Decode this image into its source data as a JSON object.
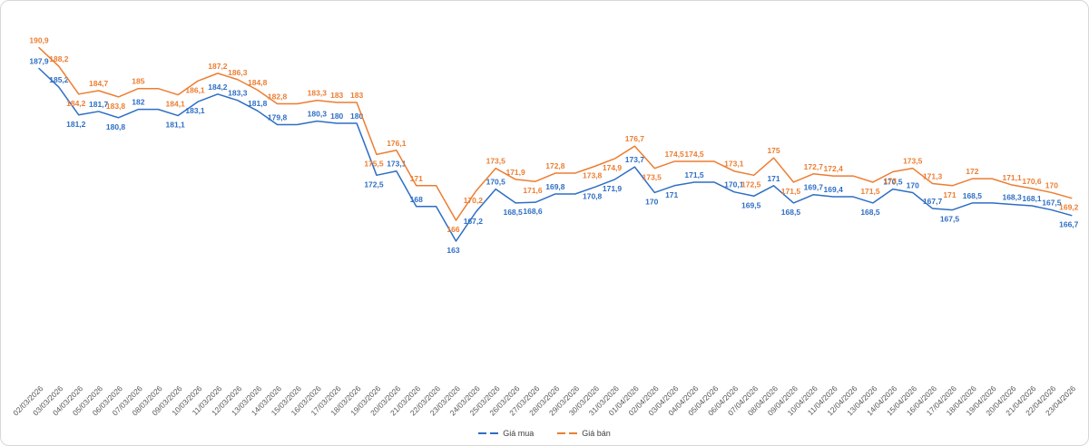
{
  "chart_data": {
    "type": "line",
    "title": "",
    "xlabel": "",
    "ylabel": "",
    "grid": false,
    "legend_position": "bottom-center",
    "ylim": [
      160,
      195
    ],
    "x": [
      "02/03/2026",
      "03/03/2026",
      "04/03/2026",
      "05/03/2026",
      "06/03/2026",
      "07/03/2026",
      "08/03/2026",
      "09/03/2026",
      "10/03/2026",
      "11/03/2026",
      "12/03/2026",
      "13/03/2026",
      "14/03/2026",
      "15/03/2026",
      "16/03/2026",
      "17/03/2026",
      "18/03/2026",
      "19/03/2026",
      "20/03/2026",
      "21/03/2026",
      "22/03/2026",
      "23/03/2026",
      "24/03/2026",
      "25/03/2026",
      "26/03/2026",
      "27/03/2026",
      "28/03/2026",
      "29/03/2026",
      "30/03/2026",
      "31/03/2026",
      "01/04/2026",
      "02/04/2026",
      "03/04/2026",
      "04/04/2026",
      "05/04/2026",
      "06/04/2026",
      "07/04/2026",
      "08/04/2026",
      "09/04/2026",
      "10/04/2026",
      "11/04/2026",
      "12/04/2026",
      "13/04/2026",
      "14/04/2026",
      "15/04/2026",
      "16/04/2026",
      "17/04/2026",
      "18/04/2026",
      "19/04/2026",
      "20/04/2026",
      "21/04/2026",
      "22/04/2026",
      "23/04/2026"
    ],
    "series": [
      {
        "name": "Giá mua",
        "color": "#2e6ec4",
        "values": [
          187.9,
          185.2,
          181.2,
          181.7,
          180.8,
          182,
          182,
          181.1,
          183.1,
          184.2,
          183.3,
          181.8,
          179.8,
          179.8,
          180.3,
          180,
          180,
          172.5,
          173.1,
          168,
          168,
          163,
          167.2,
          170.5,
          168.5,
          168.6,
          169.8,
          169.8,
          170.8,
          171.9,
          173.7,
          170,
          171,
          171.5,
          171.5,
          170.1,
          169.5,
          171,
          168.5,
          169.7,
          169.4,
          169.4,
          168.5,
          170.5,
          170,
          167.7,
          167.5,
          168.5,
          168.5,
          168.3,
          168.1,
          167.5,
          166.7
        ],
        "labels": [
          "187,9",
          "185,2",
          "181,2",
          "181,7",
          "180,8",
          "182",
          "",
          "181,1",
          "183,1",
          "184,2",
          "183,3",
          "181,8",
          "179,8",
          "",
          "180,3",
          "180",
          "180",
          "172,5",
          "173,1",
          "168",
          "",
          "163",
          "167,2",
          "170,5",
          "168,5",
          "168,6",
          "169,8",
          "",
          "170,8",
          "171,9",
          "173,7",
          "170",
          "171",
          "171,5",
          "",
          "170,1",
          "169,5",
          "171",
          "168,5",
          "169,7",
          "169,4",
          "",
          "168,5",
          "170,5",
          "170",
          "167,7",
          "167,5",
          "168,5",
          "",
          "168,3",
          "168,1",
          "167,5",
          "166,7"
        ]
      },
      {
        "name": "Giá bán",
        "color": "#ed7d31",
        "values": [
          190.9,
          188.2,
          184.2,
          184.7,
          183.8,
          185,
          185,
          184.1,
          186.1,
          187.2,
          186.3,
          184.8,
          182.8,
          182.8,
          183.3,
          183,
          183,
          175.5,
          176.1,
          171,
          171,
          166,
          170.2,
          173.5,
          171.9,
          171.6,
          172.8,
          172.8,
          173.8,
          174.9,
          176.7,
          173.5,
          174.5,
          174.5,
          174.5,
          173.1,
          172.5,
          175,
          171.5,
          172.7,
          172.4,
          172.4,
          171.5,
          173,
          173.5,
          171.3,
          171,
          172,
          172,
          171.1,
          170.6,
          170,
          169.2
        ],
        "labels": [
          "190,9",
          "188,2",
          "184,2",
          "184,7",
          "183,8",
          "185",
          "",
          "184,1",
          "186,1",
          "187,2",
          "186,3",
          "184,8",
          "182,8",
          "",
          "183,3",
          "183",
          "183",
          "175,5",
          "176,1",
          "171",
          "",
          "166",
          "170,2",
          "173,5",
          "171,9",
          "171,6",
          "172,8",
          "",
          "173,8",
          "174,9",
          "176,7",
          "173,5",
          "174,5",
          "174,5",
          "",
          "173,1",
          "172,5",
          "175",
          "171,5",
          "172,7",
          "172,4",
          "",
          "171,5",
          "173",
          "173,5",
          "171,3",
          "171",
          "172",
          "",
          "171,1",
          "170,6",
          "170",
          "169,2"
        ]
      }
    ],
    "x_tick_color": "#595959"
  },
  "legend": {
    "items": [
      {
        "label": "Giá mua"
      },
      {
        "label": "Giá bán"
      }
    ]
  }
}
